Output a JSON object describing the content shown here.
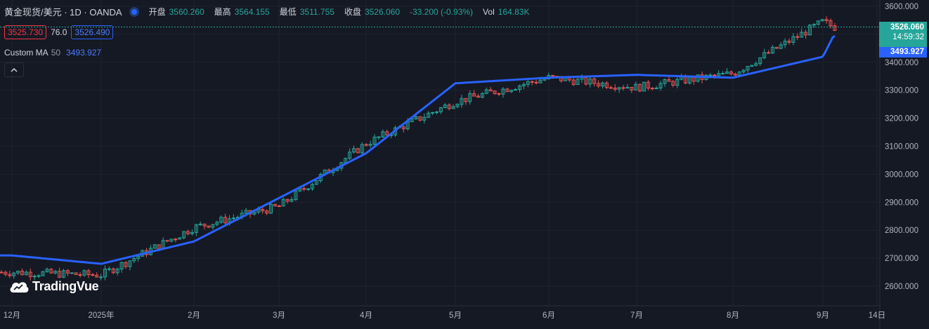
{
  "legend": {
    "symbol": "黄金现货/美元 · 1D · OANDA",
    "open_label": "开盘",
    "open_value": "3560.260",
    "high_label": "最高",
    "high_value": "3564.155",
    "low_label": "最低",
    "low_value": "3511.755",
    "close_label": "收盘",
    "close_value": "3526.060",
    "change": "-33.200 (-0.93%)",
    "vol_label": "Vol",
    "vol_value": "164.83K"
  },
  "trade": {
    "bid": "3525.730",
    "spread": "76.0",
    "ask": "3526.490"
  },
  "indicator": {
    "name": "Custom MA",
    "period": "50",
    "value": "3493.927"
  },
  "brand": "TradingVue",
  "price_tags": {
    "last_price": "3526.060",
    "countdown": "14:59:32",
    "ma_value": "3493.927"
  },
  "colors": {
    "up": "#26a69a",
    "down": "#ef5350",
    "ma": "#2962ff",
    "background": "#151924",
    "grid": "#1e222d",
    "axis_text": "#b2b5be"
  },
  "icons": {
    "live": "live-dot-icon",
    "collapse": "chevron-up-icon",
    "brand_logo": "cloud-logo-icon"
  },
  "chart_data": {
    "type": "candlestick",
    "y_axis": {
      "min": 2550,
      "max": 3620,
      "ticks": [
        "2600.000",
        "2700.000",
        "2800.000",
        "2900.000",
        "3000.000",
        "3100.000",
        "3200.000",
        "3300.000",
        "3400.000",
        "3500.000",
        "3600.000"
      ]
    },
    "x_axis": {
      "ticks": [
        "12月",
        "2025年",
        "2月",
        "3月",
        "4月",
        "5月",
        "6月",
        "7月",
        "8月",
        "9月",
        "14日"
      ]
    },
    "last_price": 3526.06,
    "series": [
      {
        "name": "Custom MA",
        "period": 50
      }
    ],
    "ma_points": [
      [
        "12月",
        2710
      ],
      [
        "2025年",
        2680
      ],
      [
        "2月",
        2760
      ],
      [
        "3月",
        2915
      ],
      [
        "4月",
        3075
      ],
      [
        "5月",
        3325
      ],
      [
        "6月",
        3345
      ],
      [
        "7月",
        3355
      ],
      [
        "8月",
        3345
      ],
      [
        "9月",
        3420
      ],
      [
        "last",
        3493.927
      ]
    ],
    "price_points": [
      [
        "12月",
        2650
      ],
      [
        "2025年",
        2640
      ],
      [
        "2月",
        2810
      ],
      [
        "3月",
        2885
      ],
      [
        "4月",
        3110
      ],
      [
        "5月",
        3260
      ],
      [
        "6月",
        3345
      ],
      [
        "7月",
        3310
      ],
      [
        "8月",
        3360
      ],
      [
        "9月",
        3545
      ],
      [
        "last",
        3526.06
      ]
    ]
  }
}
